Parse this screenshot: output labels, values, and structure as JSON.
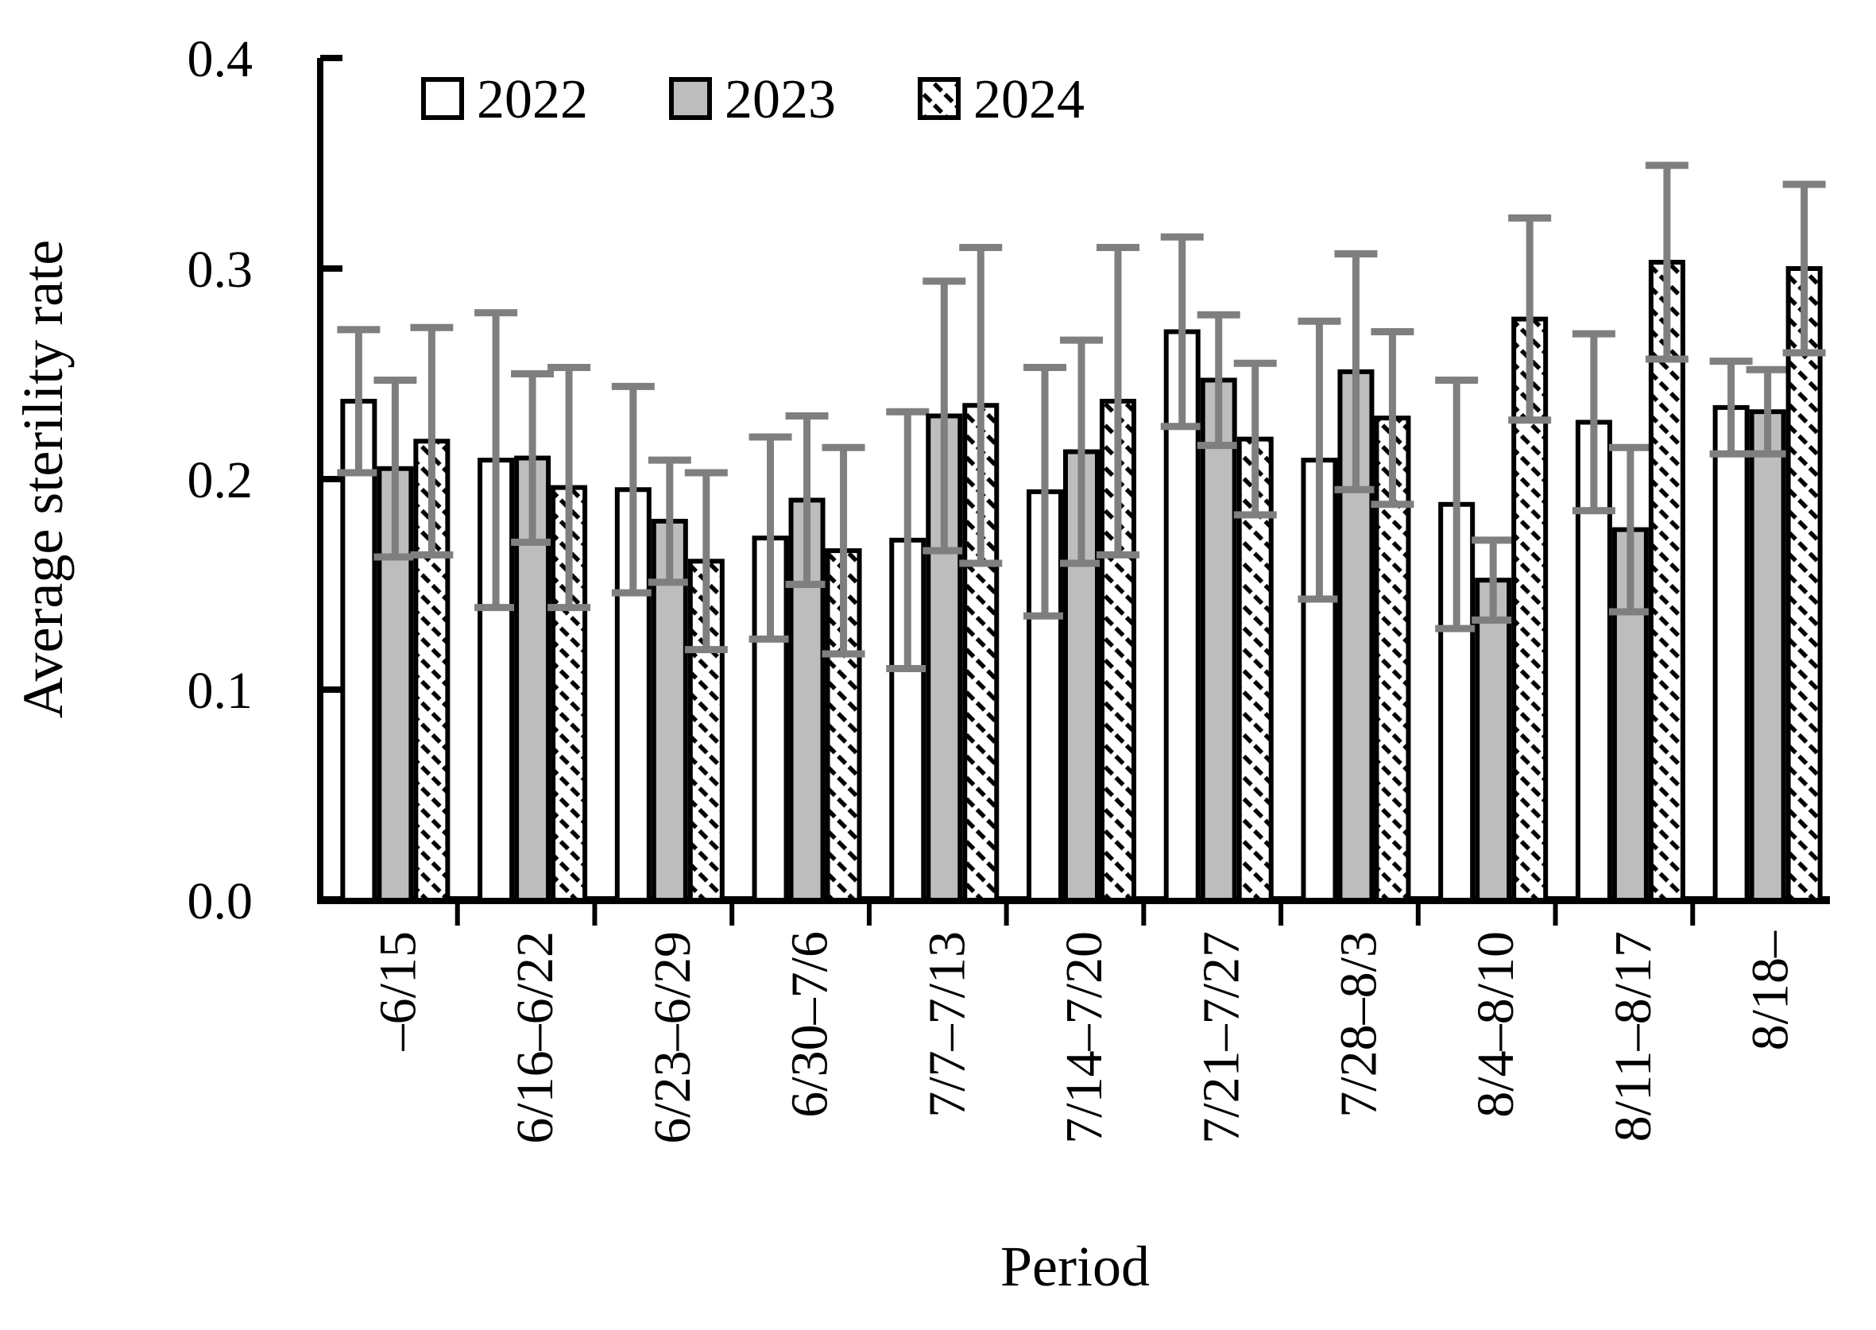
{
  "chart_data": {
    "type": "bar",
    "title": "",
    "xlabel": "Period",
    "ylabel": "Average sterility rate",
    "ylim": [
      0,
      0.4
    ],
    "yticks": [
      0.0,
      0.1,
      0.2,
      0.3,
      0.4
    ],
    "ytick_labels": [
      "0.0",
      "0.1",
      "0.2",
      "0.3",
      "0.4"
    ],
    "grid": false,
    "error_bars": true,
    "legend_position": "top-left-inside",
    "categories": [
      "–6/15",
      "6/16–6/22",
      "6/23–6/29",
      "6/30–7/6",
      "7/7–7/13",
      "7/14–7/20",
      "7/21–7/27",
      "7/28–8/3",
      "8/4–8/10",
      "8/11–8/17",
      "8/18–"
    ],
    "series": [
      {
        "name": "2022",
        "fill": "white",
        "values": [
          0.237,
          0.209,
          0.195,
          0.172,
          0.171,
          0.194,
          0.27,
          0.209,
          0.188,
          0.227,
          0.234
        ],
        "errors": [
          0.034,
          0.07,
          0.049,
          0.048,
          0.061,
          0.059,
          0.045,
          0.066,
          0.059,
          0.042,
          0.022
        ]
      },
      {
        "name": "2023",
        "fill": "gray",
        "values": [
          0.205,
          0.21,
          0.18,
          0.19,
          0.23,
          0.213,
          0.247,
          0.251,
          0.152,
          0.176,
          0.232
        ],
        "errors": [
          0.042,
          0.04,
          0.029,
          0.04,
          0.064,
          0.053,
          0.031,
          0.056,
          0.019,
          0.039,
          0.02
        ]
      },
      {
        "name": "2024",
        "fill": "hatch",
        "values": [
          0.218,
          0.196,
          0.161,
          0.166,
          0.235,
          0.237,
          0.219,
          0.229,
          0.276,
          0.303,
          0.3
        ],
        "errors": [
          0.054,
          0.057,
          0.042,
          0.049,
          0.075,
          0.073,
          0.036,
          0.041,
          0.048,
          0.046,
          0.04
        ]
      }
    ],
    "colors": {
      "bar_gray_fill": "#bdbdbd",
      "bar_outline": "#000000",
      "error_bar": "#7f7f7f",
      "hatch_line": "#000000",
      "background": "#ffffff"
    }
  }
}
